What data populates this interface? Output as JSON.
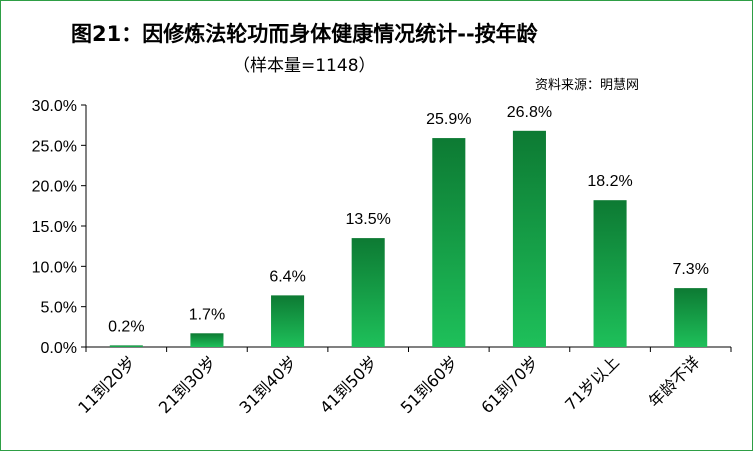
{
  "chart_data": {
    "type": "bar",
    "title": "图21：因修炼法轮功而身体健康情况统计--按年龄",
    "subtitle": "（样本量=1148）",
    "source": "资料来源：明慧网",
    "categories": [
      "11到20岁",
      "21到30岁",
      "31到40岁",
      "41到50岁",
      "51到60岁",
      "61到70岁",
      "71岁以上",
      "年龄不详"
    ],
    "values": [
      0.2,
      1.7,
      6.4,
      13.5,
      25.9,
      26.8,
      18.2,
      7.3
    ],
    "data_labels": [
      "0.2%",
      "1.7%",
      "6.4%",
      "13.5%",
      "25.9%",
      "26.8%",
      "18.2%",
      "7.3%"
    ],
    "yticks": [
      0,
      5,
      10,
      15,
      20,
      25,
      30
    ],
    "ytick_labels": [
      "0.0%",
      "5.0%",
      "10.0%",
      "15.0%",
      "20.0%",
      "25.0%",
      "30.0%"
    ],
    "ylim": [
      0,
      30
    ],
    "xlabel": "",
    "ylabel": "",
    "grid": false,
    "legend": "none",
    "colors": {
      "bar_top": "#0d7a33",
      "bar_bottom": "#1ec05a",
      "frame": "#2e9e45",
      "axis": "#000000"
    }
  }
}
